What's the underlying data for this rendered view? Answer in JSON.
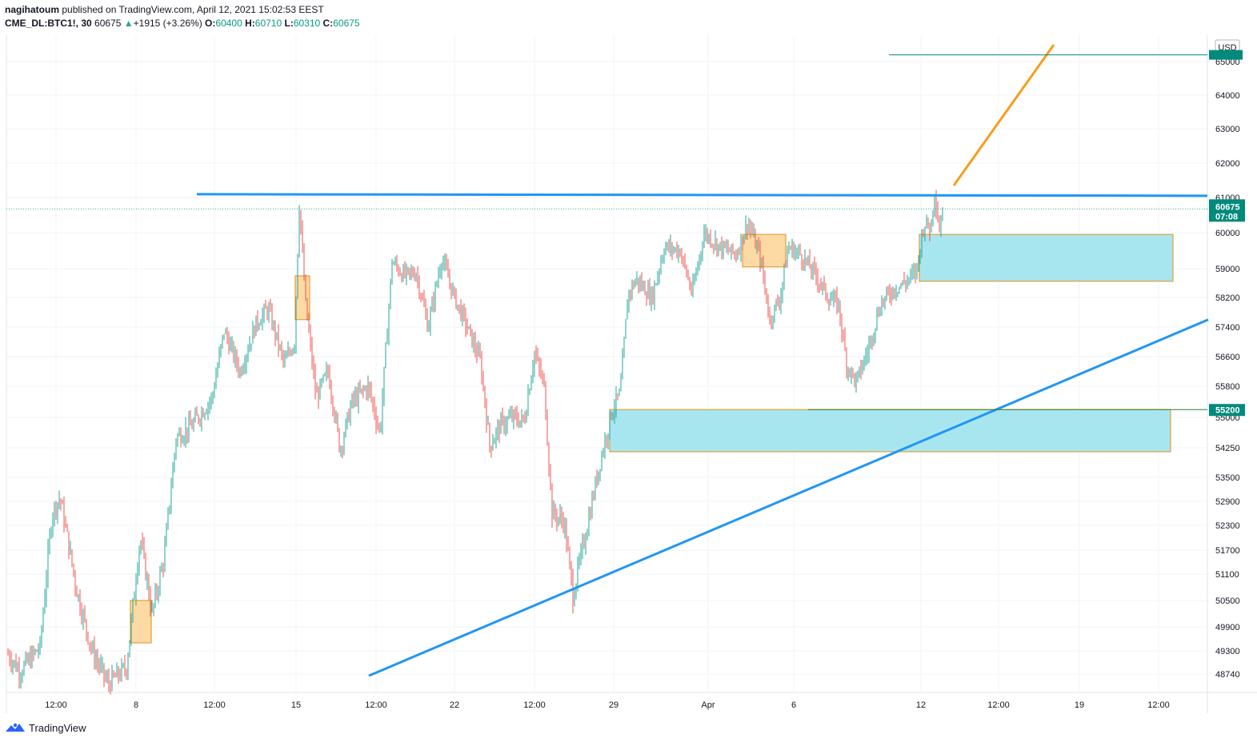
{
  "header": {
    "author": "nagihatoum",
    "published_text": "published on TradingView.com, April 12, 2021 15:02:53 EEST",
    "symbol": "CME_DL:BTC1!, 30",
    "last": "60675",
    "change": "+1915 (+3.26%)",
    "open_label": "O:",
    "open": "60400",
    "high_label": "H:",
    "high": "60710",
    "low_label": "L:",
    "low": "60310",
    "close_label": "C:",
    "close": "60675"
  },
  "footer": {
    "brand": "TradingView"
  },
  "colors": {
    "up": "#26a69a",
    "down": "#ef5350",
    "trendline": "#2196f3",
    "arrow": "#f89c1c",
    "zone_fill": "#a8e6ef",
    "zone_border": "#e0a13a",
    "block_fill": "#fdd9a3",
    "price_tag": "#008a7b"
  },
  "chart_data": {
    "type": "candlestick",
    "currency_label": "USD",
    "y_ticks": [
      48740,
      49300,
      49900,
      50500,
      51100,
      51700,
      52300,
      52900,
      53500,
      54250,
      55000,
      55800,
      56600,
      57400,
      58200,
      59000,
      60000,
      61000,
      62000,
      63000,
      64000,
      65000
    ],
    "x_ticks": [
      "12:00",
      "8",
      "12:00",
      "15",
      "12:00",
      "22",
      "12:00",
      "29",
      "Apr",
      "6",
      "12",
      "12:00",
      "19",
      "12:00"
    ],
    "last_price": {
      "value": 60675,
      "label": "60675",
      "countdown": "07:08"
    },
    "marked_level": {
      "value": 55200,
      "label": "55200"
    },
    "top_level": {
      "value": 65200
    },
    "anchors": [
      [
        0,
        49500
      ],
      [
        25,
        48800
      ],
      [
        50,
        49400
      ],
      [
        65,
        52600
      ],
      [
        75,
        53000
      ],
      [
        95,
        50800
      ],
      [
        115,
        49300
      ],
      [
        135,
        48500
      ],
      [
        158,
        48900
      ],
      [
        175,
        52000
      ],
      [
        190,
        50200
      ],
      [
        205,
        51500
      ],
      [
        220,
        54500
      ],
      [
        240,
        54800
      ],
      [
        265,
        55500
      ],
      [
        280,
        57300
      ],
      [
        300,
        56200
      ],
      [
        320,
        57500
      ],
      [
        335,
        57900
      ],
      [
        355,
        56400
      ],
      [
        368,
        57000
      ],
      [
        374,
        60800
      ],
      [
        382,
        58000
      ],
      [
        395,
        55500
      ],
      [
        410,
        56200
      ],
      [
        425,
        54200
      ],
      [
        440,
        55400
      ],
      [
        460,
        55800
      ],
      [
        475,
        54600
      ],
      [
        490,
        59200
      ],
      [
        505,
        58800
      ],
      [
        520,
        58900
      ],
      [
        535,
        57400
      ],
      [
        552,
        59300
      ],
      [
        568,
        58200
      ],
      [
        580,
        57600
      ],
      [
        600,
        56500
      ],
      [
        612,
        54300
      ],
      [
        625,
        54800
      ],
      [
        640,
        55000
      ],
      [
        655,
        54900
      ],
      [
        668,
        56700
      ],
      [
        680,
        55800
      ],
      [
        690,
        52600
      ],
      [
        705,
        52400
      ],
      [
        716,
        50600
      ],
      [
        735,
        52400
      ],
      [
        750,
        53900
      ],
      [
        765,
        55200
      ],
      [
        775,
        55600
      ],
      [
        785,
        58300
      ],
      [
        795,
        58700
      ],
      [
        815,
        58200
      ],
      [
        830,
        59600
      ],
      [
        850,
        59500
      ],
      [
        865,
        58300
      ],
      [
        880,
        60000
      ],
      [
        900,
        59600
      ],
      [
        920,
        59400
      ],
      [
        935,
        60300
      ],
      [
        950,
        59300
      ],
      [
        962,
        57600
      ],
      [
        975,
        58200
      ],
      [
        985,
        59600
      ],
      [
        1000,
        59400
      ],
      [
        1020,
        58800
      ],
      [
        1035,
        58200
      ],
      [
        1048,
        58000
      ],
      [
        1058,
        56400
      ],
      [
        1070,
        55900
      ],
      [
        1085,
        56800
      ],
      [
        1100,
        58000
      ],
      [
        1115,
        58400
      ],
      [
        1130,
        58600
      ],
      [
        1145,
        58900
      ],
      [
        1155,
        60300
      ],
      [
        1163,
        60100
      ],
      [
        1168,
        61200
      ],
      [
        1174,
        60100
      ],
      [
        1178,
        60675
      ]
    ],
    "horizontal_resistance": {
      "value": 61050,
      "x_start_frac": 0.162
    },
    "rising_trendline": {
      "from": [
        461,
        48700
      ],
      "to": [
        1510,
        57600
      ]
    },
    "arrow": {
      "from": [
        1192,
        61350
      ],
      "to": [
        1317,
        65500
      ]
    },
    "zones": [
      {
        "x1": 762,
        "x2": 1463,
        "top": 55200,
        "bottom": 54150
      },
      {
        "x1": 1149,
        "x2": 1466,
        "top": 59950,
        "bottom": 58650
      }
    ],
    "order_blocks": [
      {
        "x1": 163,
        "x2": 189,
        "top": 50500,
        "bottom": 49500
      },
      {
        "x1": 369,
        "x2": 387,
        "top": 58800,
        "bottom": 57600
      },
      {
        "x1": 928,
        "x2": 982,
        "top": 59950,
        "bottom": 59050
      }
    ]
  }
}
